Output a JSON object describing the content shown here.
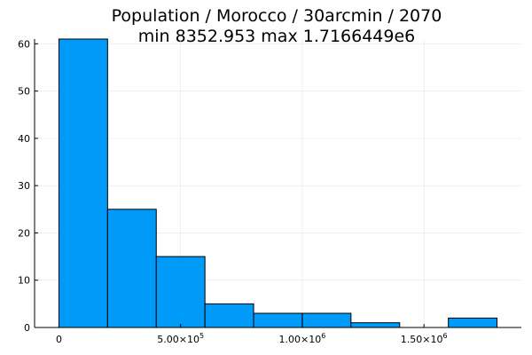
{
  "chart_data": {
    "type": "bar",
    "title": "Population / Morocco / 30arcmin / 2070",
    "subtitle": "min 8352.953  max 1.7166449e6",
    "bin_width": 200000,
    "bins": [
      {
        "start": 0,
        "end": 200000,
        "count": 61
      },
      {
        "start": 200000,
        "end": 400000,
        "count": 25
      },
      {
        "start": 400000,
        "end": 600000,
        "count": 15
      },
      {
        "start": 600000,
        "end": 800000,
        "count": 5
      },
      {
        "start": 800000,
        "end": 1000000,
        "count": 3
      },
      {
        "start": 1000000,
        "end": 1200000,
        "count": 3
      },
      {
        "start": 1200000,
        "end": 1400000,
        "count": 1
      },
      {
        "start": 1400000,
        "end": 1600000,
        "count": 0
      },
      {
        "start": 1600000,
        "end": 1800000,
        "count": 2
      }
    ],
    "x_ticks": [
      {
        "value": 0,
        "mantissa": "0",
        "exponent": ""
      },
      {
        "value": 500000,
        "mantissa": "5.00×10",
        "exponent": "5"
      },
      {
        "value": 1000000,
        "mantissa": "1.00×10",
        "exponent": "6"
      },
      {
        "value": 1500000,
        "mantissa": "1.50×10",
        "exponent": "6"
      }
    ],
    "y_ticks": [
      0,
      10,
      20,
      30,
      40,
      50,
      60
    ],
    "xlim": [
      -100000,
      1900000
    ],
    "ylim": [
      0,
      61
    ],
    "grid": true,
    "legend": "none",
    "bar_color": "#009af9"
  }
}
